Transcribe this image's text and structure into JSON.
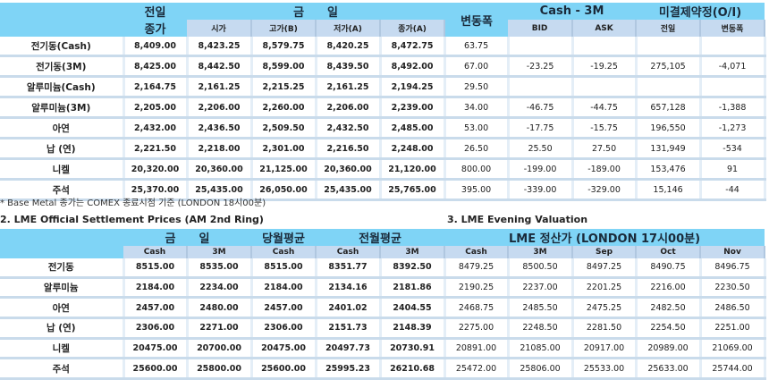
{
  "top": {
    "h_prev": "전일",
    "h_prev2": "종가",
    "h_today": "금　　일",
    "h_change": "변동폭",
    "h_spread": "Cash - 3M",
    "h_oi": "미결제약정(O/I)",
    "sub": [
      "시가",
      "고가(B)",
      "저가(A)",
      "종가(A)",
      "BID",
      "ASK",
      "전일",
      "변동폭"
    ],
    "rows": [
      [
        "전기동(Cash)",
        "8,409.00",
        "8,423.25",
        "8,579.75",
        "8,420.25",
        "8,472.75",
        "63.75",
        "",
        "",
        "",
        ""
      ],
      [
        "전기동(3M)",
        "8,425.00",
        "8,442.50",
        "8,599.00",
        "8,439.50",
        "8,492.00",
        "67.00",
        "-23.25",
        "-19.25",
        "275,105",
        "-4,071"
      ],
      [
        "알루미늄(Cash)",
        "2,164.75",
        "2,161.25",
        "2,215.25",
        "2,161.25",
        "2,194.25",
        "29.50",
        "",
        "",
        "",
        ""
      ],
      [
        "알루미늄(3M)",
        "2,205.00",
        "2,206.00",
        "2,260.00",
        "2,206.00",
        "2,239.00",
        "34.00",
        "-46.75",
        "-44.75",
        "657,128",
        "-1,388"
      ],
      [
        "아연",
        "2,432.00",
        "2,436.50",
        "2,509.50",
        "2,432.50",
        "2,485.00",
        "53.00",
        "-17.75",
        "-15.75",
        "196,550",
        "-1,273"
      ],
      [
        "납 (연)",
        "2,221.50",
        "2,218.00",
        "2,301.00",
        "2,216.50",
        "2,248.00",
        "26.50",
        "25.50",
        "27.50",
        "131,949",
        "-534"
      ],
      [
        "니켈",
        "20,320.00",
        "20,360.00",
        "21,125.00",
        "20,360.00",
        "21,120.00",
        "800.00",
        "-199.00",
        "-189.00",
        "153,476",
        "91"
      ],
      [
        "주석",
        "25,370.00",
        "25,435.00",
        "26,050.00",
        "25,435.00",
        "25,765.00",
        "395.00",
        "-339.00",
        "-329.00",
        "15,146",
        "-44"
      ]
    ]
  },
  "note": "* Base Metal 종가는 COMEX 종료시점 기준 (LONDON 18시00분)",
  "section2": "2. LME Official Settlement Prices (AM 2nd Ring)",
  "section3": "3. LME Evening Valuation",
  "bottom": {
    "h_today": "금　　일",
    "h_month": "당월평균",
    "h_prevmonth": "전월평균",
    "h_eval": "LME 정산가 (LONDON 17시00분)",
    "sub": [
      "Cash",
      "3M",
      "Cash",
      "Cash",
      "3M",
      "Cash",
      "3M",
      "Sep",
      "Oct",
      "Nov"
    ],
    "rows": [
      [
        "전기동",
        "8515.00",
        "8535.00",
        "8515.00",
        "8351.77",
        "8392.50",
        "8479.25",
        "8500.50",
        "8497.25",
        "8490.75",
        "8496.75"
      ],
      [
        "알루미늄",
        "2184.00",
        "2234.00",
        "2184.00",
        "2134.16",
        "2181.86",
        "2190.25",
        "2237.00",
        "2201.25",
        "2216.00",
        "2230.50"
      ],
      [
        "아연",
        "2457.00",
        "2480.00",
        "2457.00",
        "2401.02",
        "2404.55",
        "2468.75",
        "2485.50",
        "2475.25",
        "2482.50",
        "2486.50"
      ],
      [
        "납 (연)",
        "2306.00",
        "2271.00",
        "2306.00",
        "2151.73",
        "2148.39",
        "2275.00",
        "2248.50",
        "2281.50",
        "2254.50",
        "2251.00"
      ],
      [
        "니켈",
        "20475.00",
        "20700.00",
        "20475.00",
        "20497.73",
        "20730.91",
        "20891.00",
        "21085.00",
        "20917.00",
        "20989.00",
        "21069.00"
      ],
      [
        "주석",
        "25600.00",
        "25800.00",
        "25600.00",
        "25995.23",
        "26210.68",
        "25472.00",
        "25806.00",
        "25533.00",
        "25633.00",
        "25744.00"
      ]
    ]
  }
}
